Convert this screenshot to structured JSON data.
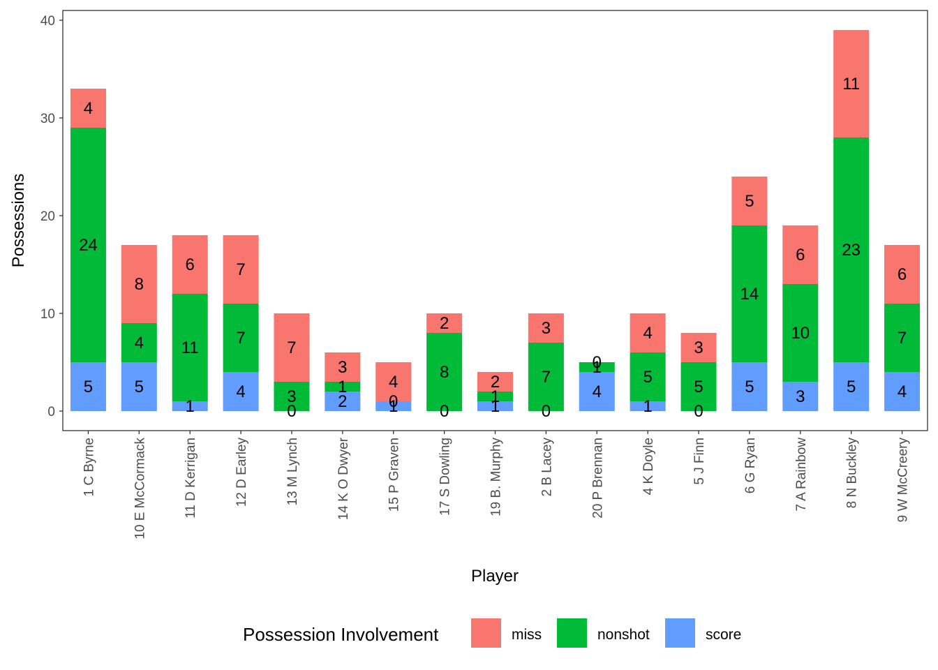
{
  "chart_data": {
    "type": "bar",
    "stacked": true,
    "title": "",
    "xlabel": "Player",
    "ylabel": "Possessions",
    "ylim": [
      -2,
      41
    ],
    "yticks": [
      0,
      10,
      20,
      30,
      40
    ],
    "grid": false,
    "legend": {
      "title": "Possession Involvement",
      "position": "bottom"
    },
    "categories": [
      "1 C Byrne",
      "10 E McCormack",
      "11 D Kerrigan",
      "12 D Earley",
      "13 M Lynch",
      "14 K O Dwyer",
      "15 P Graven",
      "17 S Dowling",
      "19 B. Murphy",
      "2 B Lacey",
      "20 P Brennan",
      "4 K Doyle",
      "5 J Finn",
      "6 G Ryan",
      "7 A Rainbow",
      "8 N Buckley",
      "9 W McCreery"
    ],
    "series": [
      {
        "name": "score",
        "color": "#619CFF",
        "values": [
          5,
          5,
          1,
          4,
          0,
          2,
          1,
          0,
          1,
          0,
          4,
          1,
          0,
          5,
          3,
          5,
          4
        ]
      },
      {
        "name": "nonshot",
        "color": "#00BA38",
        "values": [
          24,
          4,
          11,
          7,
          3,
          1,
          0,
          8,
          1,
          7,
          1,
          5,
          5,
          14,
          10,
          23,
          7
        ]
      },
      {
        "name": "miss",
        "color": "#F8766D",
        "values": [
          4,
          8,
          6,
          7,
          7,
          3,
          4,
          2,
          2,
          3,
          0,
          4,
          3,
          5,
          6,
          11,
          6
        ]
      }
    ],
    "legend_order": [
      "miss",
      "nonshot",
      "score"
    ]
  }
}
